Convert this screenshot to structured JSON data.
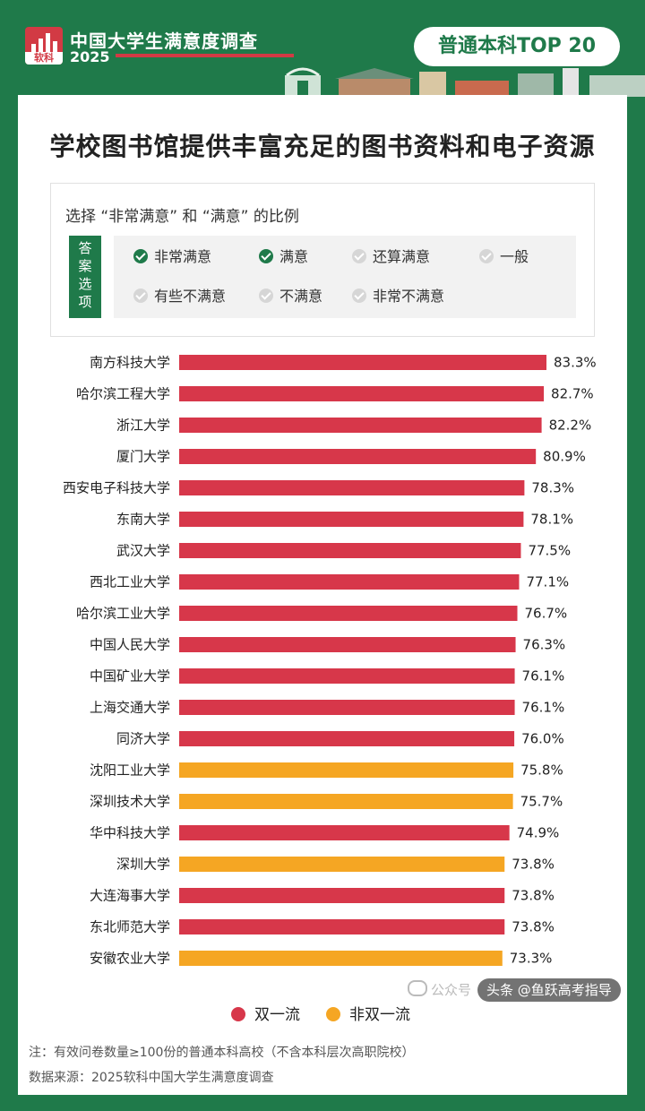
{
  "header": {
    "logo_text": "软科",
    "brand_title": "中国大学生满意度调查",
    "brand_year": "2025",
    "badge": "普通本科TOP 20"
  },
  "main_title": "学校图书馆提供丰富充足的图书资料和电子资源",
  "options": {
    "question": "选择 “非常满意” 和 “满意” 的比例",
    "tag": [
      "答",
      "案",
      "选",
      "项"
    ],
    "items": [
      {
        "label": "非常满意",
        "checked": true
      },
      {
        "label": "满意",
        "checked": true
      },
      {
        "label": "还算满意",
        "checked": false
      },
      {
        "label": "一般",
        "checked": false
      },
      {
        "label": "有些不满意",
        "checked": false
      },
      {
        "label": "不满意",
        "checked": false
      },
      {
        "label": "非常不满意",
        "checked": false
      }
    ]
  },
  "chart_data": {
    "type": "bar",
    "orientation": "horizontal",
    "title": "学校图书馆提供丰富充足的图书资料和电子资源",
    "categories": [
      "南方科技大学",
      "哈尔滨工程大学",
      "浙江大学",
      "厦门大学",
      "西安电子科技大学",
      "东南大学",
      "武汉大学",
      "西北工业大学",
      "哈尔滨工业大学",
      "中国人民大学",
      "中国矿业大学",
      "上海交通大学",
      "同济大学",
      "沈阳工业大学",
      "深圳技术大学",
      "华中科技大学",
      "深圳大学",
      "大连海事大学",
      "东北师范大学",
      "安徽农业大学"
    ],
    "values": [
      83.3,
      82.7,
      82.2,
      80.9,
      78.3,
      78.1,
      77.5,
      77.1,
      76.7,
      76.3,
      76.1,
      76.1,
      76.0,
      75.8,
      75.7,
      74.9,
      73.8,
      73.8,
      73.8,
      73.3
    ],
    "value_labels": [
      "83.3%",
      "82.7%",
      "82.2%",
      "80.9%",
      "78.3%",
      "78.1%",
      "77.5%",
      "77.1%",
      "76.7%",
      "76.3%",
      "76.1%",
      "76.1%",
      "76.0%",
      "75.8%",
      "75.7%",
      "74.9%",
      "73.8%",
      "73.8%",
      "73.8%",
      "73.3%"
    ],
    "groups": [
      "双一流",
      "双一流",
      "双一流",
      "双一流",
      "双一流",
      "双一流",
      "双一流",
      "双一流",
      "双一流",
      "双一流",
      "双一流",
      "双一流",
      "双一流",
      "非双一流",
      "非双一流",
      "双一流",
      "非双一流",
      "双一流",
      "双一流",
      "非双一流"
    ],
    "colors": {
      "双一流": "#d7374a",
      "非双一流": "#f5a623"
    },
    "legend": [
      {
        "label": "双一流",
        "color": "#d7374a"
      },
      {
        "label": "非双一流",
        "color": "#f5a623"
      }
    ],
    "legend_position": "bottom",
    "unit": "%",
    "grid": false
  },
  "notes": {
    "note": "注：有效问卷数量≥100份的普通本科高校（不含本科层次高职院校）",
    "source": "数据来源：2025软科中国大学生满意度调查"
  },
  "watermark": {
    "wechat": "公众号",
    "toutiao": "头条 @鱼跃高考指导"
  }
}
